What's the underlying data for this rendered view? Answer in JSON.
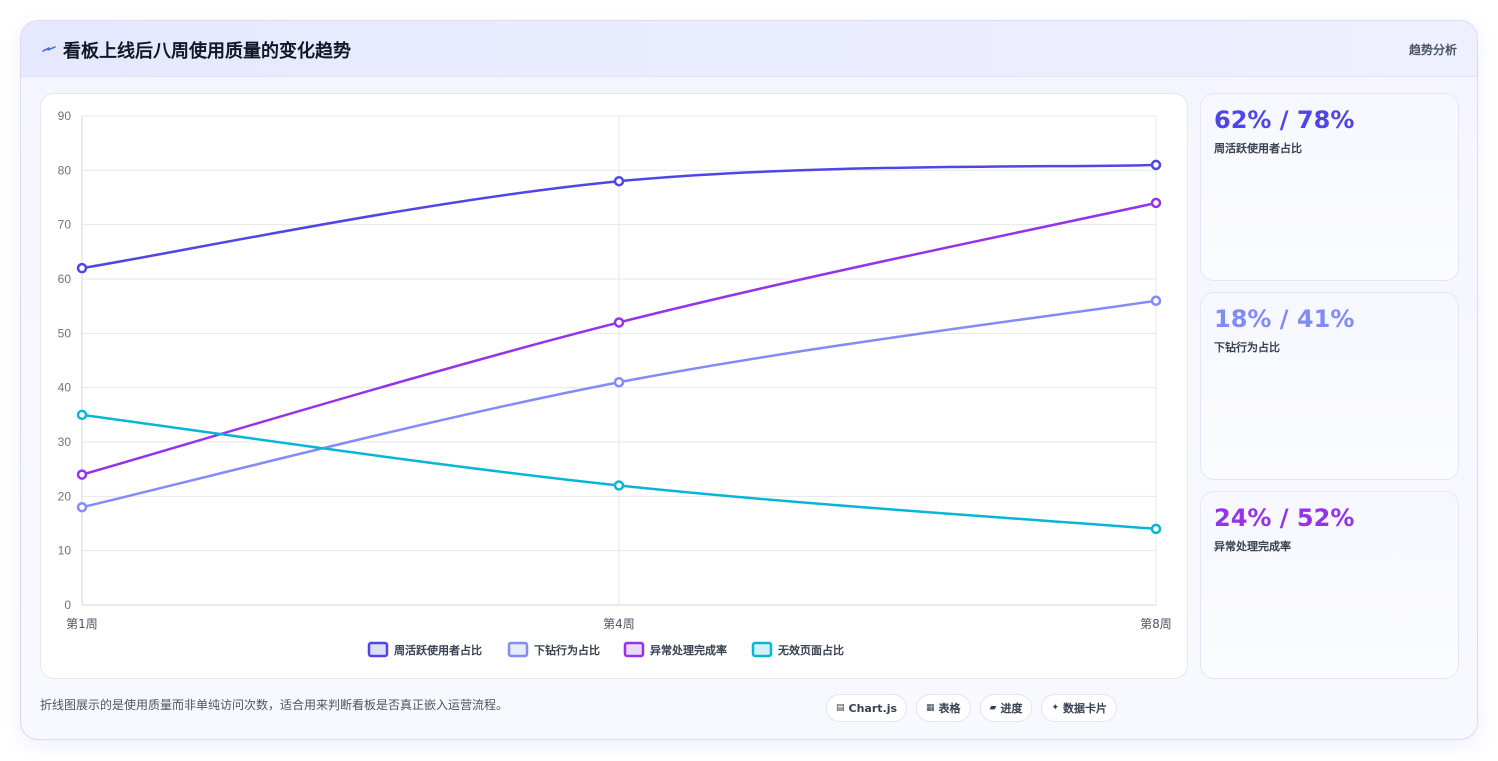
{
  "header": {
    "title": "看板上线后八周使用质量的变化趋势",
    "tag": "趋势分析",
    "title_icon": "lightning-icon"
  },
  "chart_data": {
    "type": "line",
    "x": [
      "第1周",
      "第4周",
      "第8周"
    ],
    "ylim": [
      0,
      90
    ],
    "yticks": [
      "0",
      "10",
      "20",
      "30",
      "40",
      "50",
      "60",
      "70",
      "80",
      "90"
    ],
    "grid": true,
    "legend_position": "bottom",
    "series": [
      {
        "name": "周活跃使用者占比",
        "values": [
          62,
          78,
          81
        ],
        "color": "#4f46e5"
      },
      {
        "name": "下钻行为占比",
        "values": [
          18,
          41,
          56
        ],
        "color": "#818cf8"
      },
      {
        "name": "异常处理完成率",
        "values": [
          24,
          52,
          74
        ],
        "color": "#9333ea"
      },
      {
        "name": "无效页面占比",
        "values": [
          35,
          22,
          14
        ],
        "color": "#06b6d4"
      }
    ]
  },
  "stats": [
    {
      "value": "62% / 78%",
      "label": "周活跃使用者占比",
      "color": "#4f46e5"
    },
    {
      "value": "18% / 41%",
      "label": "下钻行为占比",
      "color": "#818cf8"
    },
    {
      "value": "24% / 52%",
      "label": "异常处理完成率",
      "color": "#9333ea"
    }
  ],
  "footnote": "折线图展示的是使用质量而非单纯访问次数，适合用来判断看板是否真正嵌入运营流程。",
  "chips": [
    {
      "icon": "▤",
      "icon_name": "chart-icon",
      "label": "Chart.js"
    },
    {
      "icon": "▦",
      "icon_name": "table-icon",
      "label": "表格"
    },
    {
      "icon": "▰",
      "icon_name": "progress-icon",
      "label": "进度"
    },
    {
      "icon": "✦",
      "icon_name": "sparkle-icon",
      "label": "数据卡片"
    }
  ]
}
